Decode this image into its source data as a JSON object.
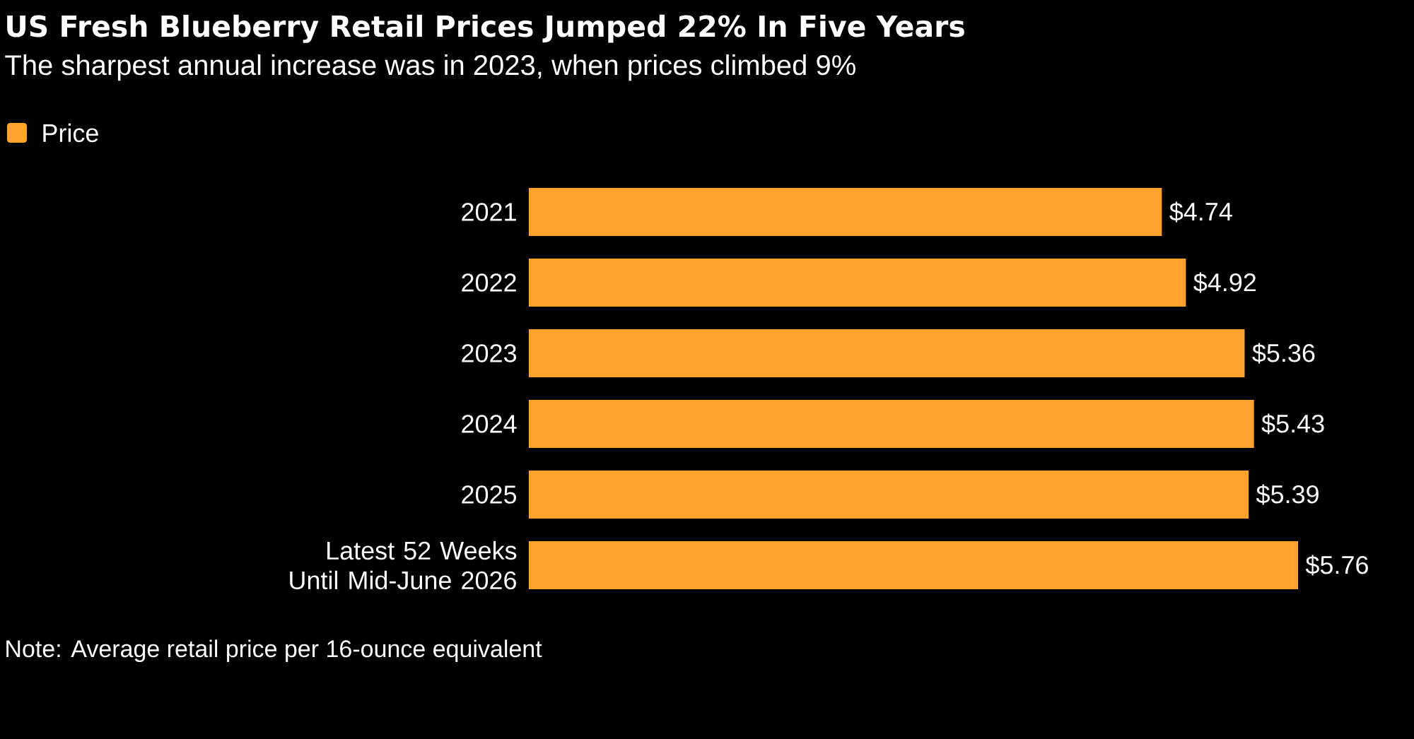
{
  "chart_data": {
    "type": "bar",
    "orientation": "horizontal",
    "title": "US Fresh Blueberry Retail Prices Jumped 22% In Five Years",
    "subtitle": "The sharpest annual increase was in 2023, when prices climbed 9%",
    "categories": [
      "2021",
      "2022",
      "2023",
      "2024",
      "2025",
      "Latest 52 Weeks Until Mid-June 2026"
    ],
    "series": [
      {
        "name": "Price",
        "color": "#ffa32e",
        "values": [
          4.74,
          4.92,
          5.36,
          5.43,
          5.39,
          5.76
        ],
        "value_labels": [
          "$4.74",
          "$4.92",
          "$5.36",
          "$5.43",
          "$5.39",
          "$5.76"
        ]
      }
    ],
    "legend": "top left",
    "annotations": [
      "Note: Average retail price per 16-ounce equivalent"
    ]
  }
}
